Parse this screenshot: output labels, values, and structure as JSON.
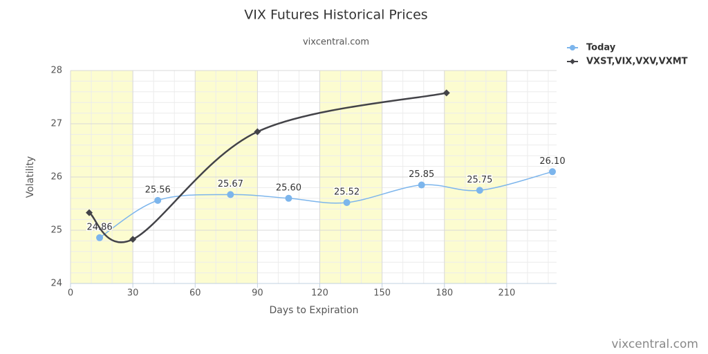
{
  "chart_data": {
    "type": "spline",
    "title": "VIX Futures Historical Prices",
    "subtitle": "vixcentral.com",
    "credits": "vixcentral.com",
    "x_label": "Days to Expiration",
    "y_label": "Volatility",
    "xlim": [
      0,
      234
    ],
    "xticks": [
      0,
      30,
      60,
      90,
      120,
      150,
      180,
      210
    ],
    "ylim": [
      24,
      28
    ],
    "yticks": [
      24,
      25,
      26,
      27,
      28
    ],
    "grid": true,
    "legend": "top-right",
    "plot_bands": {
      "color": "#fcfcd0",
      "ranges": [
        [
          0,
          30
        ],
        [
          60,
          90
        ],
        [
          120,
          150
        ],
        [
          180,
          210
        ]
      ]
    },
    "series": [
      {
        "name": "Today",
        "color": "#7cb5ec",
        "marker": "circle",
        "x": [
          14,
          42,
          77,
          105,
          133,
          169,
          197,
          232
        ],
        "values": [
          24.86,
          25.56,
          25.67,
          25.6,
          25.52,
          25.85,
          25.75,
          26.1
        ],
        "value_labels": [
          "24.86",
          "25.56",
          "25.67",
          "25.60",
          "25.52",
          "25.85",
          "25.75",
          "26.10"
        ]
      },
      {
        "name": "VXST,VIX,VXV,VXMT",
        "color": "#434348",
        "marker": "diamond",
        "x": [
          9,
          30,
          90,
          181
        ],
        "values": [
          25.33,
          24.83,
          26.85,
          27.58
        ]
      }
    ]
  }
}
